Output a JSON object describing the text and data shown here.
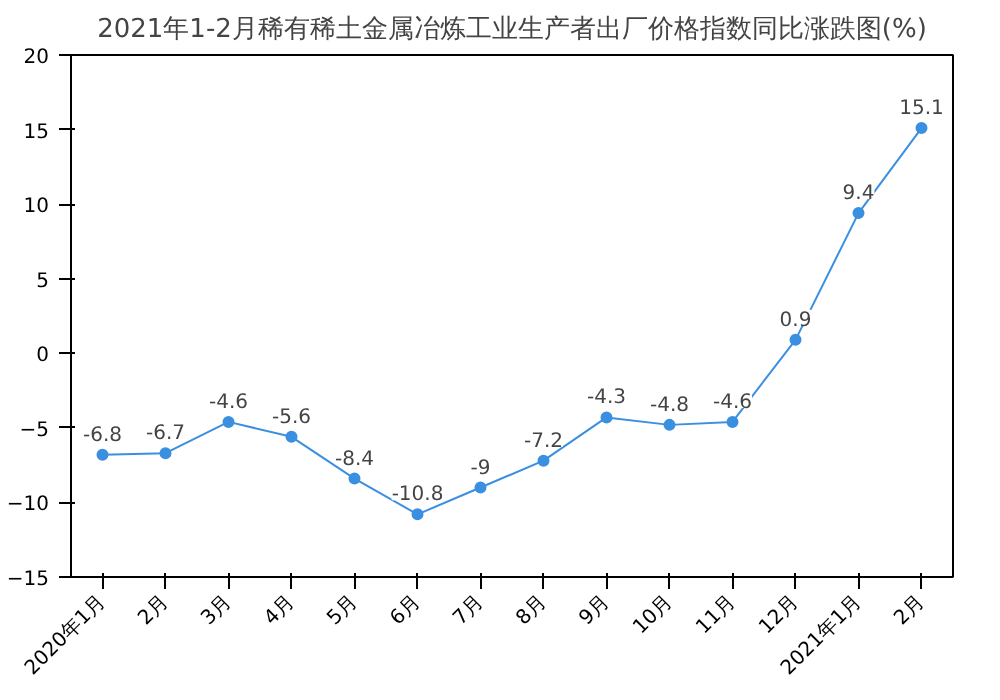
{
  "chart_data": {
    "type": "line",
    "title": "2021年1-2月稀有稀土金属冶炼工业生产者出厂价格指数同比涨跌图(%)",
    "categories": [
      "2020年1月",
      "2月",
      "3月",
      "4月",
      "5月",
      "6月",
      "7月",
      "8月",
      "9月",
      "10月",
      "11月",
      "12月",
      "2021年1月",
      "2月"
    ],
    "series": [
      {
        "color": "#3b8fe0",
        "values": [
          -6.8,
          -6.7,
          -4.6,
          -5.6,
          -8.4,
          -10.8,
          -9,
          -7.2,
          -4.3,
          -4.8,
          -4.6,
          0.9,
          9.4,
          15.1
        ]
      }
    ],
    "ylim": [
      -15,
      20
    ],
    "yticks": [
      -15,
      -10,
      -5,
      0,
      5,
      10,
      15,
      20
    ],
    "data_labels": true,
    "marker": "circle",
    "grid": false
  }
}
